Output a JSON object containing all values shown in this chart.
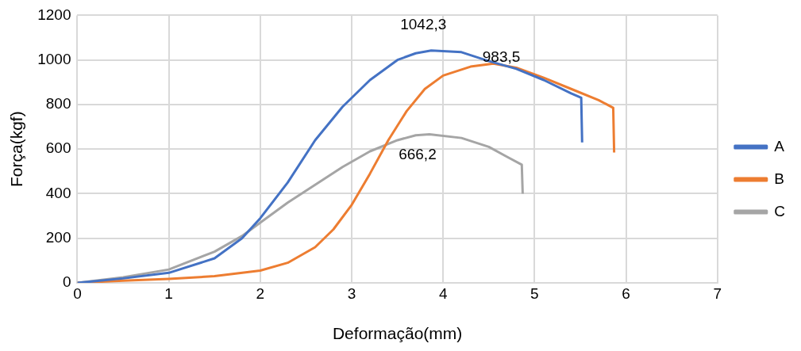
{
  "chart_data": {
    "type": "line",
    "xlabel": "Deformação(mm)",
    "ylabel": "Força(kgf)",
    "xlim": [
      0,
      7
    ],
    "xticks": [
      0,
      1,
      2,
      3,
      4,
      5,
      6,
      7
    ],
    "ylim": [
      0,
      1200
    ],
    "yticks": [
      0,
      200,
      400,
      600,
      800,
      1000,
      1200
    ],
    "grid": true,
    "legend": "right",
    "marker": "none",
    "line_style": "solid",
    "series": [
      {
        "name": "A",
        "color": "#4472c4",
        "x": [
          0,
          0.5,
          1,
          1.5,
          1.8,
          2,
          2.3,
          2.6,
          2.9,
          3.2,
          3.5,
          3.7,
          3.87,
          4.2,
          4.5,
          4.8,
          5.1,
          5.4,
          5.51,
          5.52
        ],
        "values": [
          0,
          20,
          45,
          110,
          200,
          290,
          450,
          640,
          790,
          910,
          1000,
          1030,
          1042.3,
          1035,
          995,
          960,
          910,
          850,
          830,
          630
        ]
      },
      {
        "name": "B",
        "color": "#ed7d31",
        "x": [
          0,
          0.5,
          1,
          1.5,
          2,
          2.3,
          2.6,
          2.8,
          3,
          3.2,
          3.4,
          3.6,
          3.8,
          4,
          4.3,
          4.55,
          4.8,
          5.1,
          5.4,
          5.7,
          5.86,
          5.87
        ],
        "values": [
          0,
          10,
          18,
          30,
          55,
          90,
          160,
          240,
          350,
          490,
          640,
          770,
          870,
          930,
          970,
          983.5,
          965,
          920,
          870,
          820,
          785,
          585
        ]
      },
      {
        "name": "C",
        "color": "#a5a5a5",
        "x": [
          0,
          0.5,
          1,
          1.5,
          1.8,
          2,
          2.3,
          2.6,
          2.9,
          3.2,
          3.5,
          3.7,
          3.85,
          4.2,
          4.5,
          4.7,
          4.86,
          4.87
        ],
        "values": [
          0,
          25,
          60,
          140,
          210,
          270,
          360,
          440,
          520,
          590,
          640,
          662,
          666.2,
          650,
          610,
          565,
          530,
          400
        ]
      }
    ],
    "annotations": [
      {
        "text": "1042,3",
        "x": 3.87,
        "y": 1042.3
      },
      {
        "text": "983,5",
        "x": 4.55,
        "y": 983.5
      },
      {
        "text": "666,2",
        "x": 3.85,
        "y": 666.2
      }
    ]
  }
}
